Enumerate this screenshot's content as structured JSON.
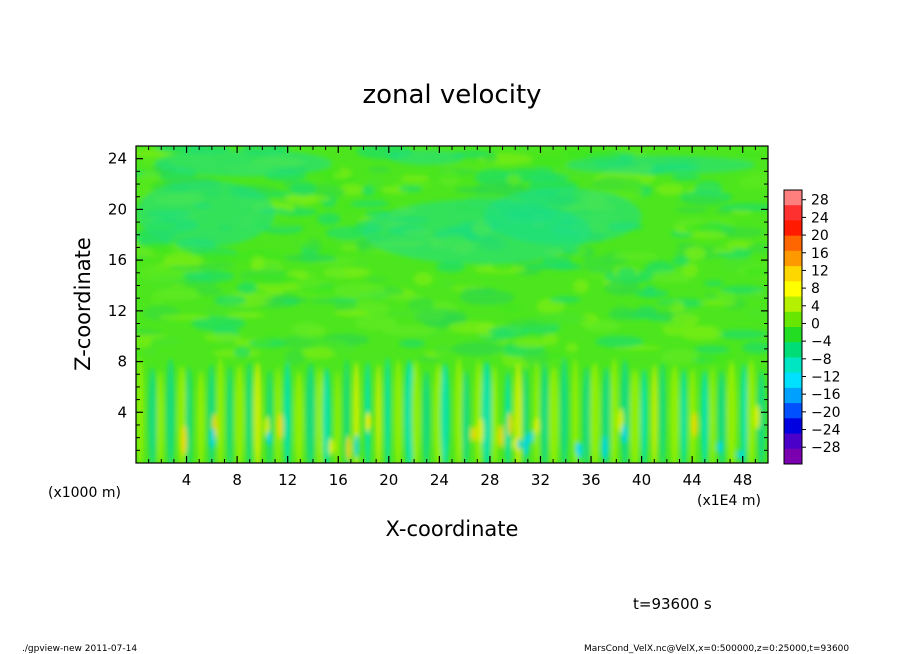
{
  "chart_data": {
    "type": "heatmap",
    "title": "zonal velocity",
    "xlabel": "X-coordinate",
    "ylabel": "Z-coordinate",
    "x_unit": "(x1E4 m)",
    "y_unit": "(x1000 m)",
    "xlim": [
      0,
      50
    ],
    "ylim": [
      0,
      25
    ],
    "x_ticks": [
      "4",
      "8",
      "12",
      "16",
      "20",
      "24",
      "28",
      "32",
      "36",
      "40",
      "44",
      "48"
    ],
    "y_ticks": [
      "4",
      "8",
      "12",
      "16",
      "20",
      "24"
    ],
    "colorbar": {
      "levels": [
        "28",
        "24",
        "20",
        "16",
        "12",
        "8",
        "4",
        "0",
        "−4",
        "−8",
        "−12",
        "−16",
        "−20",
        "−24",
        "−28"
      ],
      "colors": [
        "#ff7f7f",
        "#ff3030",
        "#ff1a00",
        "#ff6600",
        "#ff9900",
        "#ffd700",
        "#ffff00",
        "#b4f000",
        "#66e600",
        "#22dd22",
        "#00dd77",
        "#00e6c3",
        "#00e0ff",
        "#00a0ff",
        "#0050ff",
        "#0000e0",
        "#4a00c8",
        "#7a00b0"
      ]
    },
    "grid": false,
    "field_description_levels": {
      "upper_region_z_above_8": "mostly 0 to -4 with patches of -8 near z 10-22",
      "lower_region_z_below_8": "alternating columns of +4 to +12 and -8 to -16"
    }
  },
  "annotations": {
    "time": "t=93600 s",
    "footer_left": "./gpview-new  2011-07-14",
    "footer_right": "MarsCond_VelX.nc@VelX,x=0:500000,z=0:25000,t=93600"
  }
}
